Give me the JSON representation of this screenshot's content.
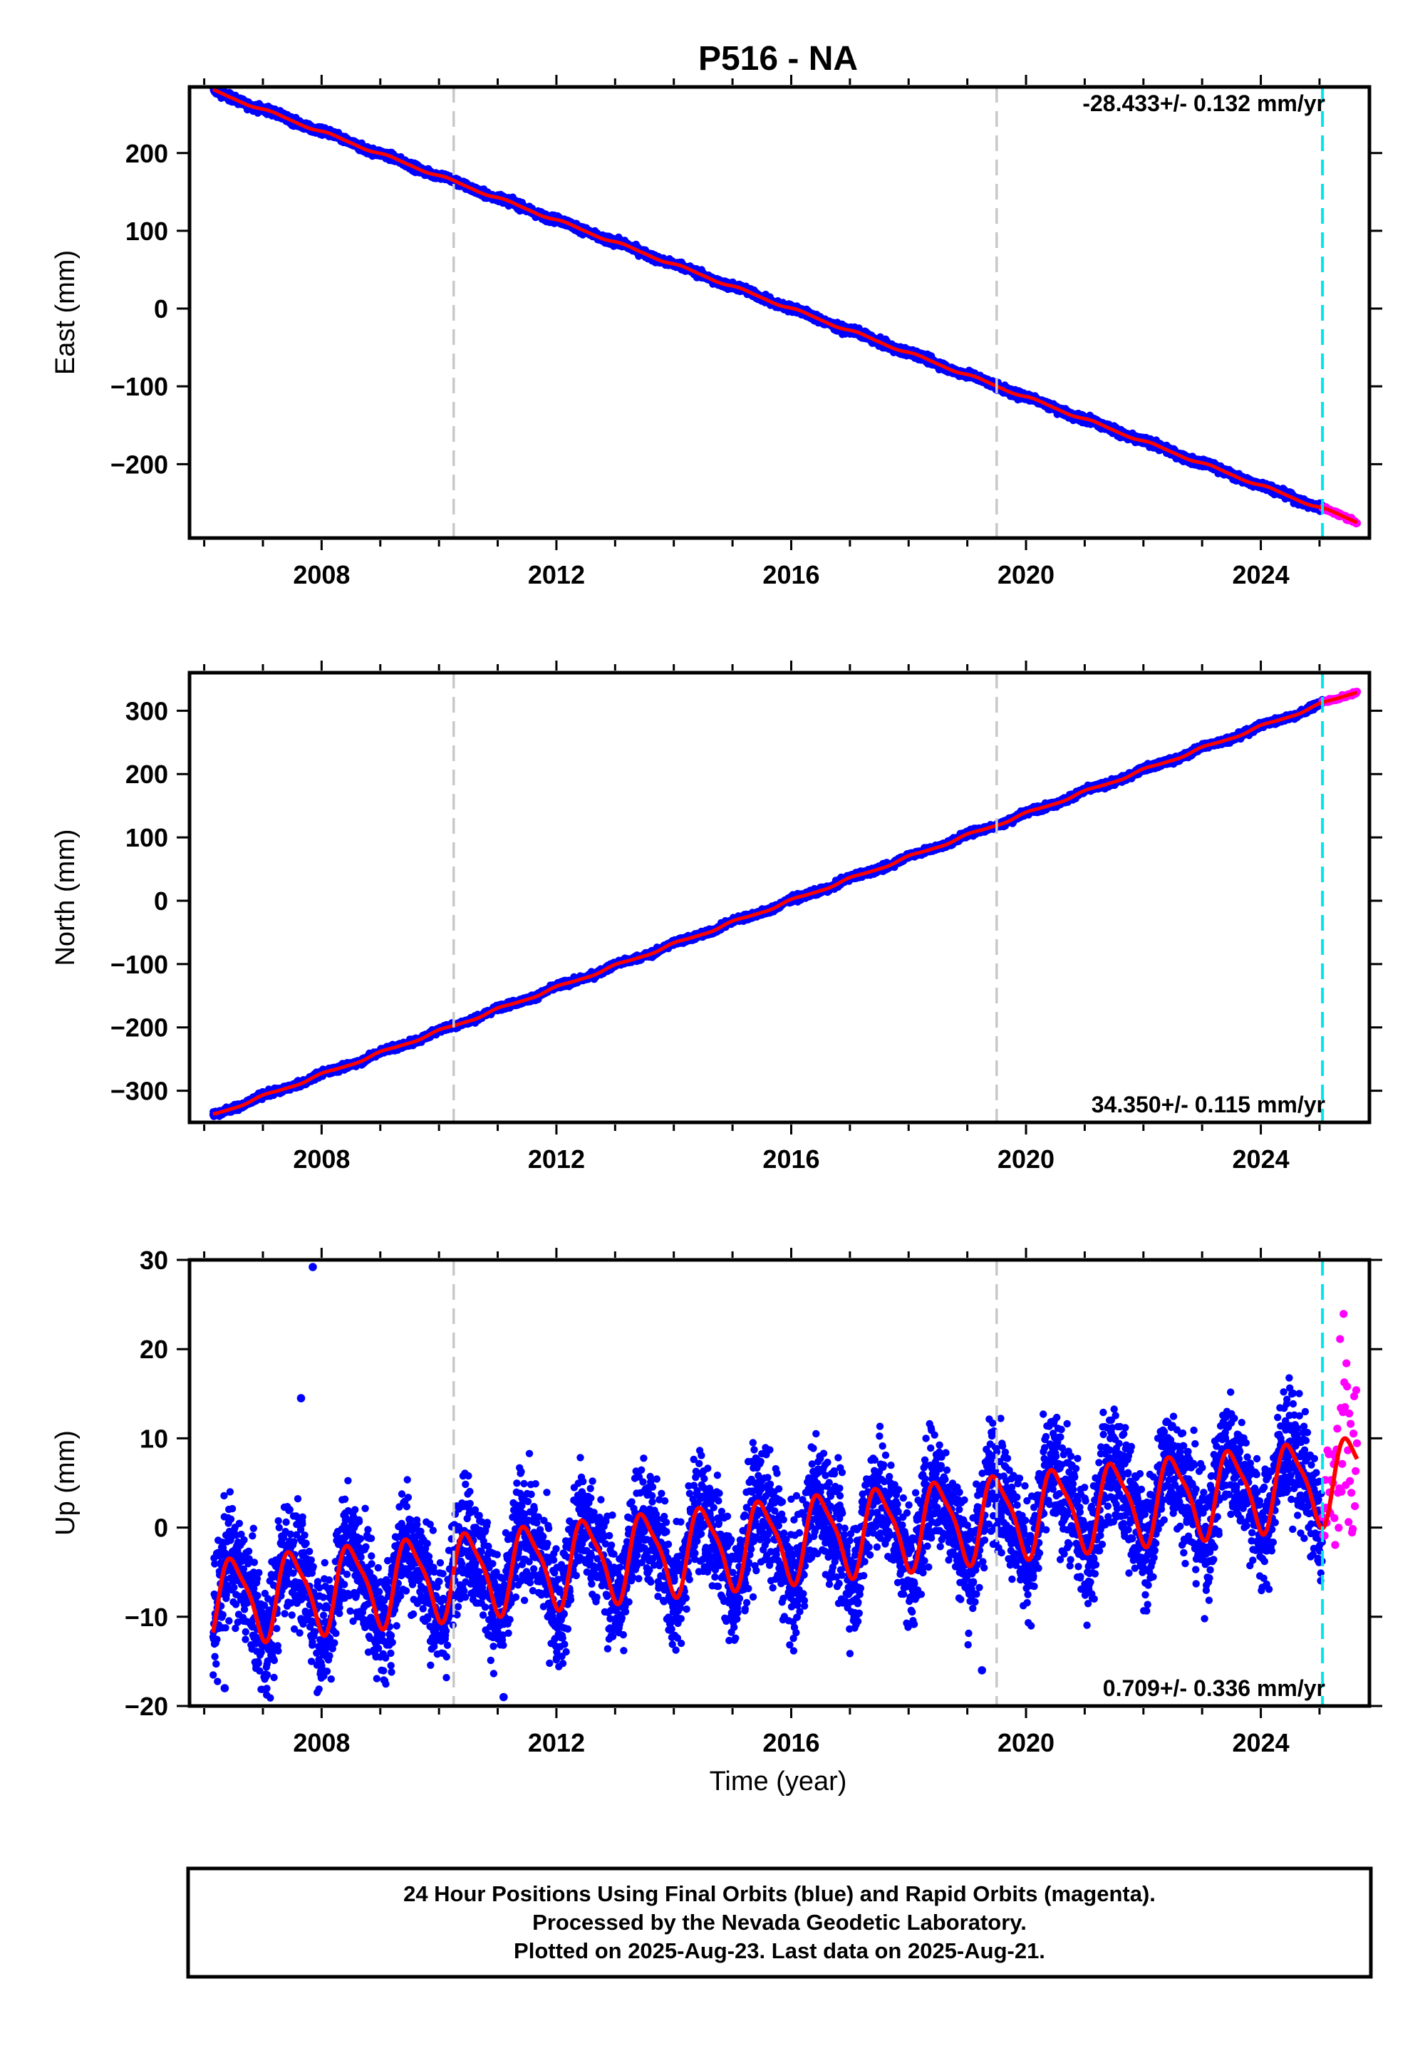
{
  "colors": {
    "final_orbits": "#0000ff",
    "rapid_orbits": "#ff00ff",
    "model": "#ff0000",
    "equipment_change": "#c8c8c8",
    "rapid_start": "#00e5ee"
  },
  "chart_data": {
    "type": "scatter",
    "title": "P516 - NA",
    "xlabel": "Time (year)",
    "xlim": [
      2005.75,
      2025.85
    ],
    "x_ticks": [
      "2008",
      "2012",
      "2016",
      "2020",
      "2024"
    ],
    "vertical_lines": {
      "gray_dashed": [
        2010.25,
        2019.5
      ],
      "cyan_dashed": [
        2025.05
      ]
    },
    "panels": [
      {
        "component": "east",
        "ylabel": "East (mm)",
        "ylim": [
          -295,
          285
        ],
        "y_ticks": [
          {
            "value": 200,
            "label": "200"
          },
          {
            "value": 100,
            "label": "100"
          },
          {
            "value": 0,
            "label": "0"
          },
          {
            "value": -100,
            "label": "−100"
          },
          {
            "value": -200,
            "label": "−200"
          }
        ],
        "rate_label": "-28.433+/- 0.132 mm/yr",
        "rate_position": "top-right",
        "rate": -28.433,
        "value_at_2016": 0,
        "season_amp": 1.5,
        "season_phase": 0.3,
        "noise": 2.5,
        "outliers": [],
        "final_range": [
          2006.15,
          2025.05
        ],
        "rapid_range": [
          2025.05,
          2025.64
        ]
      },
      {
        "component": "north",
        "ylabel": "North (mm)",
        "ylim": [
          -350,
          360
        ],
        "y_ticks": [
          {
            "value": 300,
            "label": "300"
          },
          {
            "value": 200,
            "label": "200"
          },
          {
            "value": 100,
            "label": "100"
          },
          {
            "value": 0,
            "label": "0"
          },
          {
            "value": -100,
            "label": "−100"
          },
          {
            "value": -200,
            "label": "−200"
          },
          {
            "value": -300,
            "label": "−300"
          }
        ],
        "rate_label": "34.350+/- 0.115 mm/yr",
        "rate_position": "bottom-right",
        "rate": 34.35,
        "value_at_2016": 0,
        "season_amp": 2,
        "season_phase": 1.2,
        "noise": 2.5,
        "outliers": [],
        "final_range": [
          2006.15,
          2025.05
        ],
        "rapid_range": [
          2025.05,
          2025.64
        ]
      },
      {
        "component": "up",
        "ylabel": "Up (mm)",
        "ylim": [
          -20,
          30
        ],
        "y_ticks": [
          {
            "value": 30,
            "label": "30"
          },
          {
            "value": 20,
            "label": "20"
          },
          {
            "value": 10,
            "label": "10"
          },
          {
            "value": 0,
            "label": "0"
          },
          {
            "value": -10,
            "label": "−10"
          },
          {
            "value": -20,
            "label": "−20"
          }
        ],
        "rate_label": "0.709+/- 0.336 mm/yr",
        "rate_position": "bottom-right",
        "rate": 0.709,
        "value_at_2016": -1.2,
        "season_amp": 4.5,
        "season_phase": -1.6,
        "noise": 3.3,
        "outliers": [
          {
            "x": 2007.85,
            "y": 29.2
          },
          {
            "x": 2007.65,
            "y": 14.5
          },
          {
            "x": 2006.35,
            "y": -18
          },
          {
            "x": 2011.1,
            "y": -19
          },
          {
            "x": 2019.25,
            "y": -16
          }
        ],
        "final_range": [
          2006.15,
          2025.05
        ],
        "rapid_range": [
          2025.05,
          2025.64
        ]
      }
    ]
  },
  "footer": {
    "line1": "24 Hour Positions Using Final Orbits (blue) and Rapid Orbits (magenta).",
    "line2": "Processed by the Nevada Geodetic Laboratory.",
    "line3": "Plotted on 2025-Aug-23. Last data on 2025-Aug-21."
  }
}
